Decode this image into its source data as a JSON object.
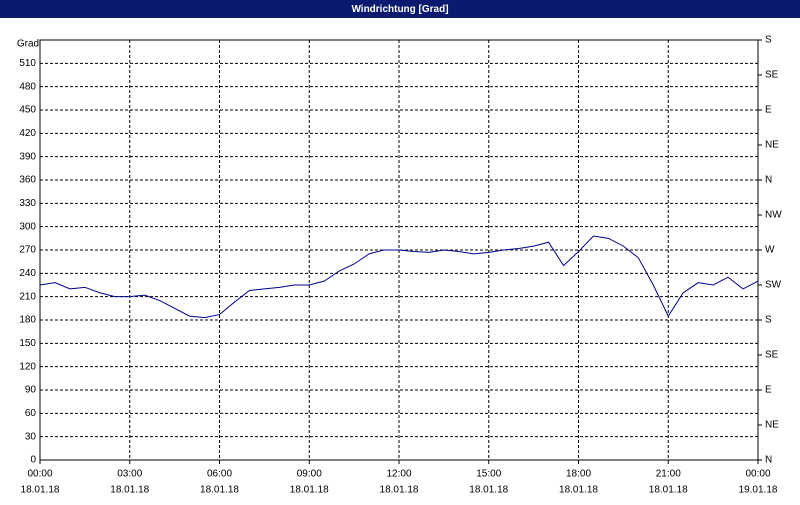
{
  "window_title": "Windrichtung [Grad]",
  "chart_data": {
    "type": "line",
    "y_label": "Grad",
    "x": [
      0,
      0.5,
      1,
      1.5,
      2,
      2.5,
      3,
      3.5,
      4,
      4.5,
      5,
      5.5,
      6,
      6.5,
      7,
      7.5,
      8,
      8.5,
      9,
      9.5,
      10,
      10.5,
      11,
      11.5,
      12,
      12.5,
      13,
      13.5,
      14,
      14.5,
      15,
      15.5,
      16,
      16.5,
      17,
      17.5,
      18,
      18.5,
      19,
      19.5,
      20,
      20.5,
      21,
      21.5,
      22,
      22.5,
      23,
      23.5,
      24
    ],
    "series": [
      {
        "name": "Windrichtung",
        "color": "#00008b",
        "values": [
          225,
          228,
          220,
          222,
          215,
          210,
          210,
          212,
          205,
          195,
          185,
          183,
          187,
          203,
          218,
          220,
          222,
          225,
          225,
          230,
          243,
          252,
          265,
          270,
          270,
          268,
          267,
          270,
          268,
          265,
          267,
          270,
          272,
          275,
          280,
          250,
          268,
          288,
          285,
          275,
          260,
          225,
          185,
          215,
          228,
          225,
          235,
          220,
          230
        ]
      }
    ],
    "xlim": [
      0,
      24
    ],
    "xticks": [
      {
        "value": 0,
        "label": "00:00"
      },
      {
        "value": 3,
        "label": "03:00"
      },
      {
        "value": 6,
        "label": "06:00"
      },
      {
        "value": 9,
        "label": "09:00"
      },
      {
        "value": 12,
        "label": "12:00"
      },
      {
        "value": 15,
        "label": "15:00"
      },
      {
        "value": 18,
        "label": "18:00"
      },
      {
        "value": 21,
        "label": "21:00"
      },
      {
        "value": 24,
        "label": "00:00"
      }
    ],
    "xtick_dates": [
      "18.01.18",
      "18.01.18",
      "18.01.18",
      "18.01.18",
      "18.01.18",
      "18.01.18",
      "18.01.18",
      "18.01.18",
      "19.01.18"
    ],
    "ylim": [
      0,
      540
    ],
    "yticks": [
      0,
      30,
      60,
      90,
      120,
      150,
      180,
      210,
      240,
      270,
      300,
      330,
      360,
      390,
      420,
      450,
      480,
      510
    ],
    "y2lim": [
      0,
      540
    ],
    "y2ticks": [
      {
        "value": 0,
        "label": "N"
      },
      {
        "value": 45,
        "label": "NE"
      },
      {
        "value": 90,
        "label": "E"
      },
      {
        "value": 135,
        "label": "SE"
      },
      {
        "value": 180,
        "label": "S"
      },
      {
        "value": 225,
        "label": "SW"
      },
      {
        "value": 270,
        "label": "W"
      },
      {
        "value": 315,
        "label": "NW"
      },
      {
        "value": 360,
        "label": "N"
      },
      {
        "value": 405,
        "label": "NE"
      },
      {
        "value": 450,
        "label": "E"
      },
      {
        "value": 495,
        "label": "SE"
      },
      {
        "value": 540,
        "label": "S"
      }
    ],
    "grid": true
  }
}
